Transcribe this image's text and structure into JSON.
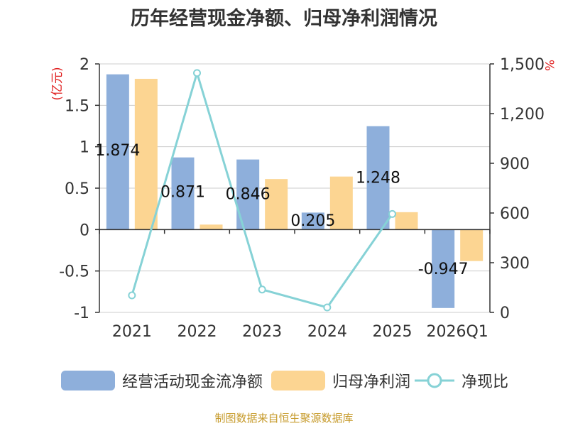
{
  "title": "历年经营现金净额、归母净利润情况",
  "source": "制图数据来自恒生聚源数据库",
  "colors": {
    "cash": "#8eafdb",
    "profit": "#fcd592",
    "ratio": "#86d2d6",
    "unit_text": "#e02020",
    "axis": "#333333",
    "grid": "#cccccc"
  },
  "chart_data": {
    "type": "bar",
    "categories": [
      "2021",
      "2022",
      "2023",
      "2024",
      "2025",
      "2026Q1"
    ],
    "series": [
      {
        "name": "经营活动现金流净额",
        "type": "bar",
        "axis": "left",
        "color": "#8eafdb",
        "values": [
          1.874,
          0.871,
          0.846,
          0.205,
          1.248,
          -0.947
        ],
        "labels": [
          "1.874",
          "0.871",
          "0.846",
          "0.205",
          "1.248",
          "-0.947"
        ]
      },
      {
        "name": "归母净利润",
        "type": "bar",
        "axis": "left",
        "color": "#fcd592",
        "values": [
          1.82,
          0.06,
          0.61,
          0.64,
          0.21,
          -0.38
        ]
      },
      {
        "name": "净现比",
        "type": "line",
        "axis": "right",
        "color": "#86d2d6",
        "values": [
          103,
          1445,
          138,
          30,
          594,
          null
        ]
      }
    ],
    "y_left": {
      "unit": "(亿元)",
      "range": [
        -1,
        2
      ],
      "ticks": [
        2,
        1.5,
        1,
        0.5,
        0,
        -0.5,
        -1
      ],
      "tick_labels": [
        "2",
        "1.5",
        "1",
        "0.5",
        "0",
        "-0.5",
        "-1"
      ]
    },
    "y_right": {
      "unit": "%",
      "range": [
        0,
        1500
      ],
      "ticks": [
        1500,
        1200,
        900,
        600,
        300,
        0
      ],
      "tick_labels": [
        "1,500",
        "1,200",
        "900",
        "600",
        "300",
        "0"
      ]
    },
    "grid": true,
    "legend_position": "bottom"
  }
}
